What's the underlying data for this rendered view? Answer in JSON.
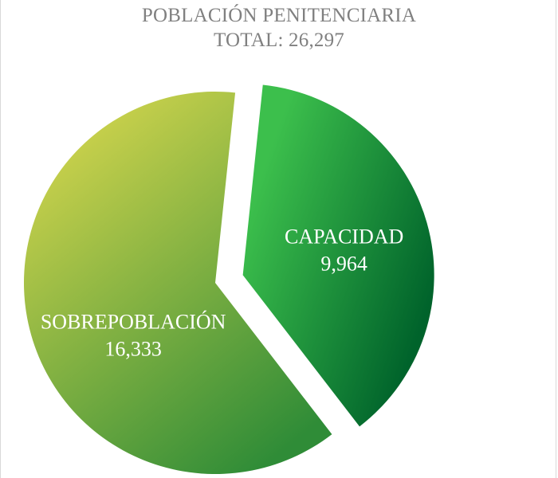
{
  "chart_data": {
    "type": "pie",
    "title": "POBLACIÓN PENITENCIARIA",
    "subtitle": "TOTAL: 26,297",
    "slices": [
      {
        "name": "CAPACIDAD",
        "value": 9964,
        "value_label": "9,964",
        "color_light": "#3cbf4c",
        "color_dark": "#00632b",
        "exploded": true
      },
      {
        "name": "SOBREPOBLACIÓN",
        "value": 16333,
        "value_label": "16,333",
        "color_light": "#dcd94e",
        "color_dark": "#2f8c37",
        "exploded": false
      }
    ],
    "legend": "none",
    "grid": false
  }
}
